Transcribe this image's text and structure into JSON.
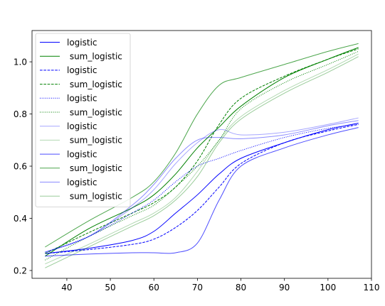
{
  "chart_data": {
    "type": "line",
    "title": "",
    "xlabel": "",
    "ylabel": "",
    "xlim": [
      32,
      110
    ],
    "ylim": [
      0.17,
      1.12
    ],
    "x_ticks": [
      40,
      50,
      60,
      70,
      80,
      90,
      100,
      110
    ],
    "y_ticks": [
      0.2,
      0.4,
      0.6,
      0.8,
      1.0
    ],
    "x_tick_labels": [
      "40",
      "50",
      "60",
      "70",
      "80",
      "90",
      "100",
      "110"
    ],
    "y_tick_labels": [
      "0.2",
      "0.4",
      "0.6",
      "0.8",
      "1.0"
    ],
    "grid": false,
    "legend_position": "upper-left",
    "x": [
      35,
      45,
      55,
      60,
      65,
      70,
      75,
      80,
      90,
      100,
      107
    ],
    "series": [
      {
        "name": "logistic",
        "color": "#0000ff",
        "dash": "solid",
        "opacity": 1.0,
        "values": [
          0.265,
          0.285,
          0.315,
          0.35,
          0.42,
          0.49,
          0.57,
          0.63,
          0.69,
          0.74,
          0.765
        ]
      },
      {
        "name": " sum_logistic",
        "color": "#008000",
        "dash": "solid",
        "opacity": 1.0,
        "values": [
          0.255,
          0.36,
          0.44,
          0.49,
          0.57,
          0.67,
          0.75,
          0.83,
          0.94,
          1.01,
          1.055
        ]
      },
      {
        "name": "logistic",
        "color": "#0000ff",
        "dash": "dashed",
        "opacity": 1.0,
        "values": [
          0.265,
          0.28,
          0.3,
          0.32,
          0.365,
          0.43,
          0.52,
          0.61,
          0.69,
          0.735,
          0.76
        ]
      },
      {
        "name": " sum_logistic",
        "color": "#008000",
        "dash": "dashed",
        "opacity": 1.0,
        "values": [
          0.265,
          0.345,
          0.42,
          0.46,
          0.52,
          0.62,
          0.76,
          0.86,
          0.945,
          1.01,
          1.05
        ]
      },
      {
        "name": "logistic",
        "color": "#0000ff",
        "dash": "dotted",
        "opacity": 1.0,
        "values": [
          0.27,
          0.33,
          0.42,
          0.47,
          0.54,
          0.6,
          0.63,
          0.66,
          0.71,
          0.745,
          0.76
        ]
      },
      {
        "name": " sum_logistic",
        "color": "#008000",
        "dash": "dotted",
        "opacity": 1.0,
        "values": [
          0.24,
          0.33,
          0.41,
          0.45,
          0.52,
          0.6,
          0.7,
          0.82,
          0.92,
          0.99,
          1.04
        ]
      },
      {
        "name": "logistic",
        "color": "#0000ff",
        "dash": "solid",
        "opacity": 0.35,
        "values": [
          0.27,
          0.33,
          0.44,
          0.51,
          0.61,
          0.69,
          0.74,
          0.72,
          0.73,
          0.76,
          0.785
        ]
      },
      {
        "name": " sum_logistic",
        "color": "#008000",
        "dash": "solid",
        "opacity": 0.3,
        "values": [
          0.225,
          0.3,
          0.38,
          0.42,
          0.48,
          0.58,
          0.7,
          0.79,
          0.89,
          0.97,
          1.03
        ]
      },
      {
        "name": "logistic",
        "color": "#0000ff",
        "dash": "solid",
        "opacity": 0.7,
        "values": [
          0.255,
          0.263,
          0.268,
          0.268,
          0.268,
          0.305,
          0.47,
          0.6,
          0.67,
          0.72,
          0.748
        ]
      },
      {
        "name": " sum_logistic",
        "color": "#008000",
        "dash": "solid",
        "opacity": 0.7,
        "values": [
          0.29,
          0.39,
          0.48,
          0.54,
          0.65,
          0.8,
          0.91,
          0.94,
          0.99,
          1.04,
          1.07
        ]
      },
      {
        "name": "logistic",
        "color": "#0000ff",
        "dash": "solid",
        "opacity": 0.45,
        "values": [
          0.27,
          0.33,
          0.45,
          0.53,
          0.63,
          0.7,
          0.71,
          0.705,
          0.72,
          0.755,
          0.775
        ]
      },
      {
        "name": " sum_logistic",
        "color": "#008000",
        "dash": "solid",
        "opacity": 0.4,
        "values": [
          0.21,
          0.29,
          0.37,
          0.41,
          0.47,
          0.56,
          0.69,
          0.78,
          0.88,
          0.96,
          1.02
        ]
      }
    ]
  }
}
